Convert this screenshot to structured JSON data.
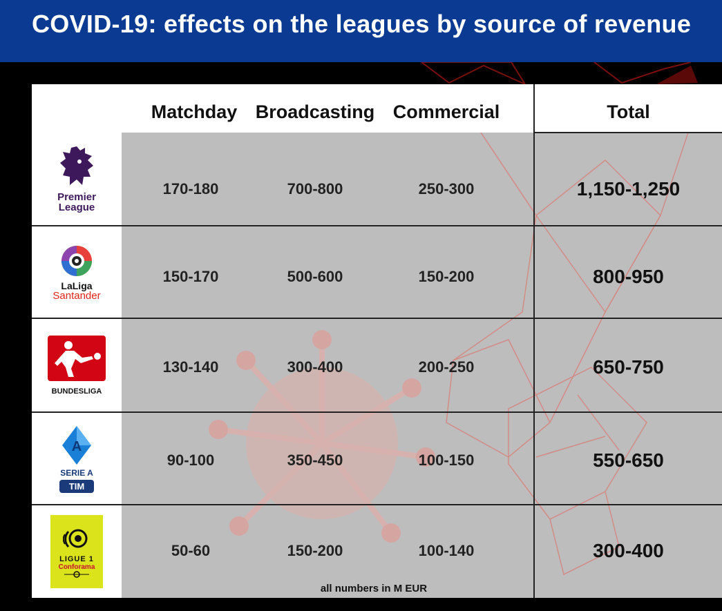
{
  "header": {
    "title": "COVID-19: effects on the leagues by source of revenue",
    "bg_color": "#0b3a93"
  },
  "columns": [
    "Matchday",
    "Broadcasting",
    "Commercial",
    "Total"
  ],
  "rows": [
    {
      "league_logo_text": [
        "Premier",
        "League"
      ],
      "logo_icon": "premier-league-lion-icon",
      "matchday": "170-180",
      "broadcasting": "700-800",
      "commercial": "250-300",
      "total": "1,150-1,250"
    },
    {
      "league_logo_text": [
        "LaLiga",
        "Santander"
      ],
      "logo_icon": "laliga-ball-icon",
      "matchday": "150-170",
      "broadcasting": "500-600",
      "commercial": "150-200",
      "total": "800-950"
    },
    {
      "league_logo_text": [
        "BUNDESLIGA"
      ],
      "logo_icon": "bundesliga-player-icon",
      "matchday": "130-140",
      "broadcasting": "300-400",
      "commercial": "200-250",
      "total": "650-750"
    },
    {
      "league_logo_text": [
        "SERIE A",
        "TIM"
      ],
      "logo_icon": "serie-a-shield-icon",
      "matchday": "90-100",
      "broadcasting": "350-450",
      "commercial": "100-150",
      "total": "550-650"
    },
    {
      "league_logo_text": [
        "LIGUE 1",
        "Conforama"
      ],
      "logo_icon": "ligue1-logo-icon",
      "matchday": "50-60",
      "broadcasting": "150-200",
      "commercial": "100-140",
      "total": "300-400"
    }
  ],
  "footnote": "all numbers in M EUR",
  "colors": {
    "table_gray": "#bdbdbd",
    "accent_red": "#e0473e",
    "premier_purple": "#3d195b",
    "bundesliga_red": "#d20515",
    "serie_a_blue": "#1a7fd6",
    "ligue1_yellow": "#dbe31a"
  }
}
